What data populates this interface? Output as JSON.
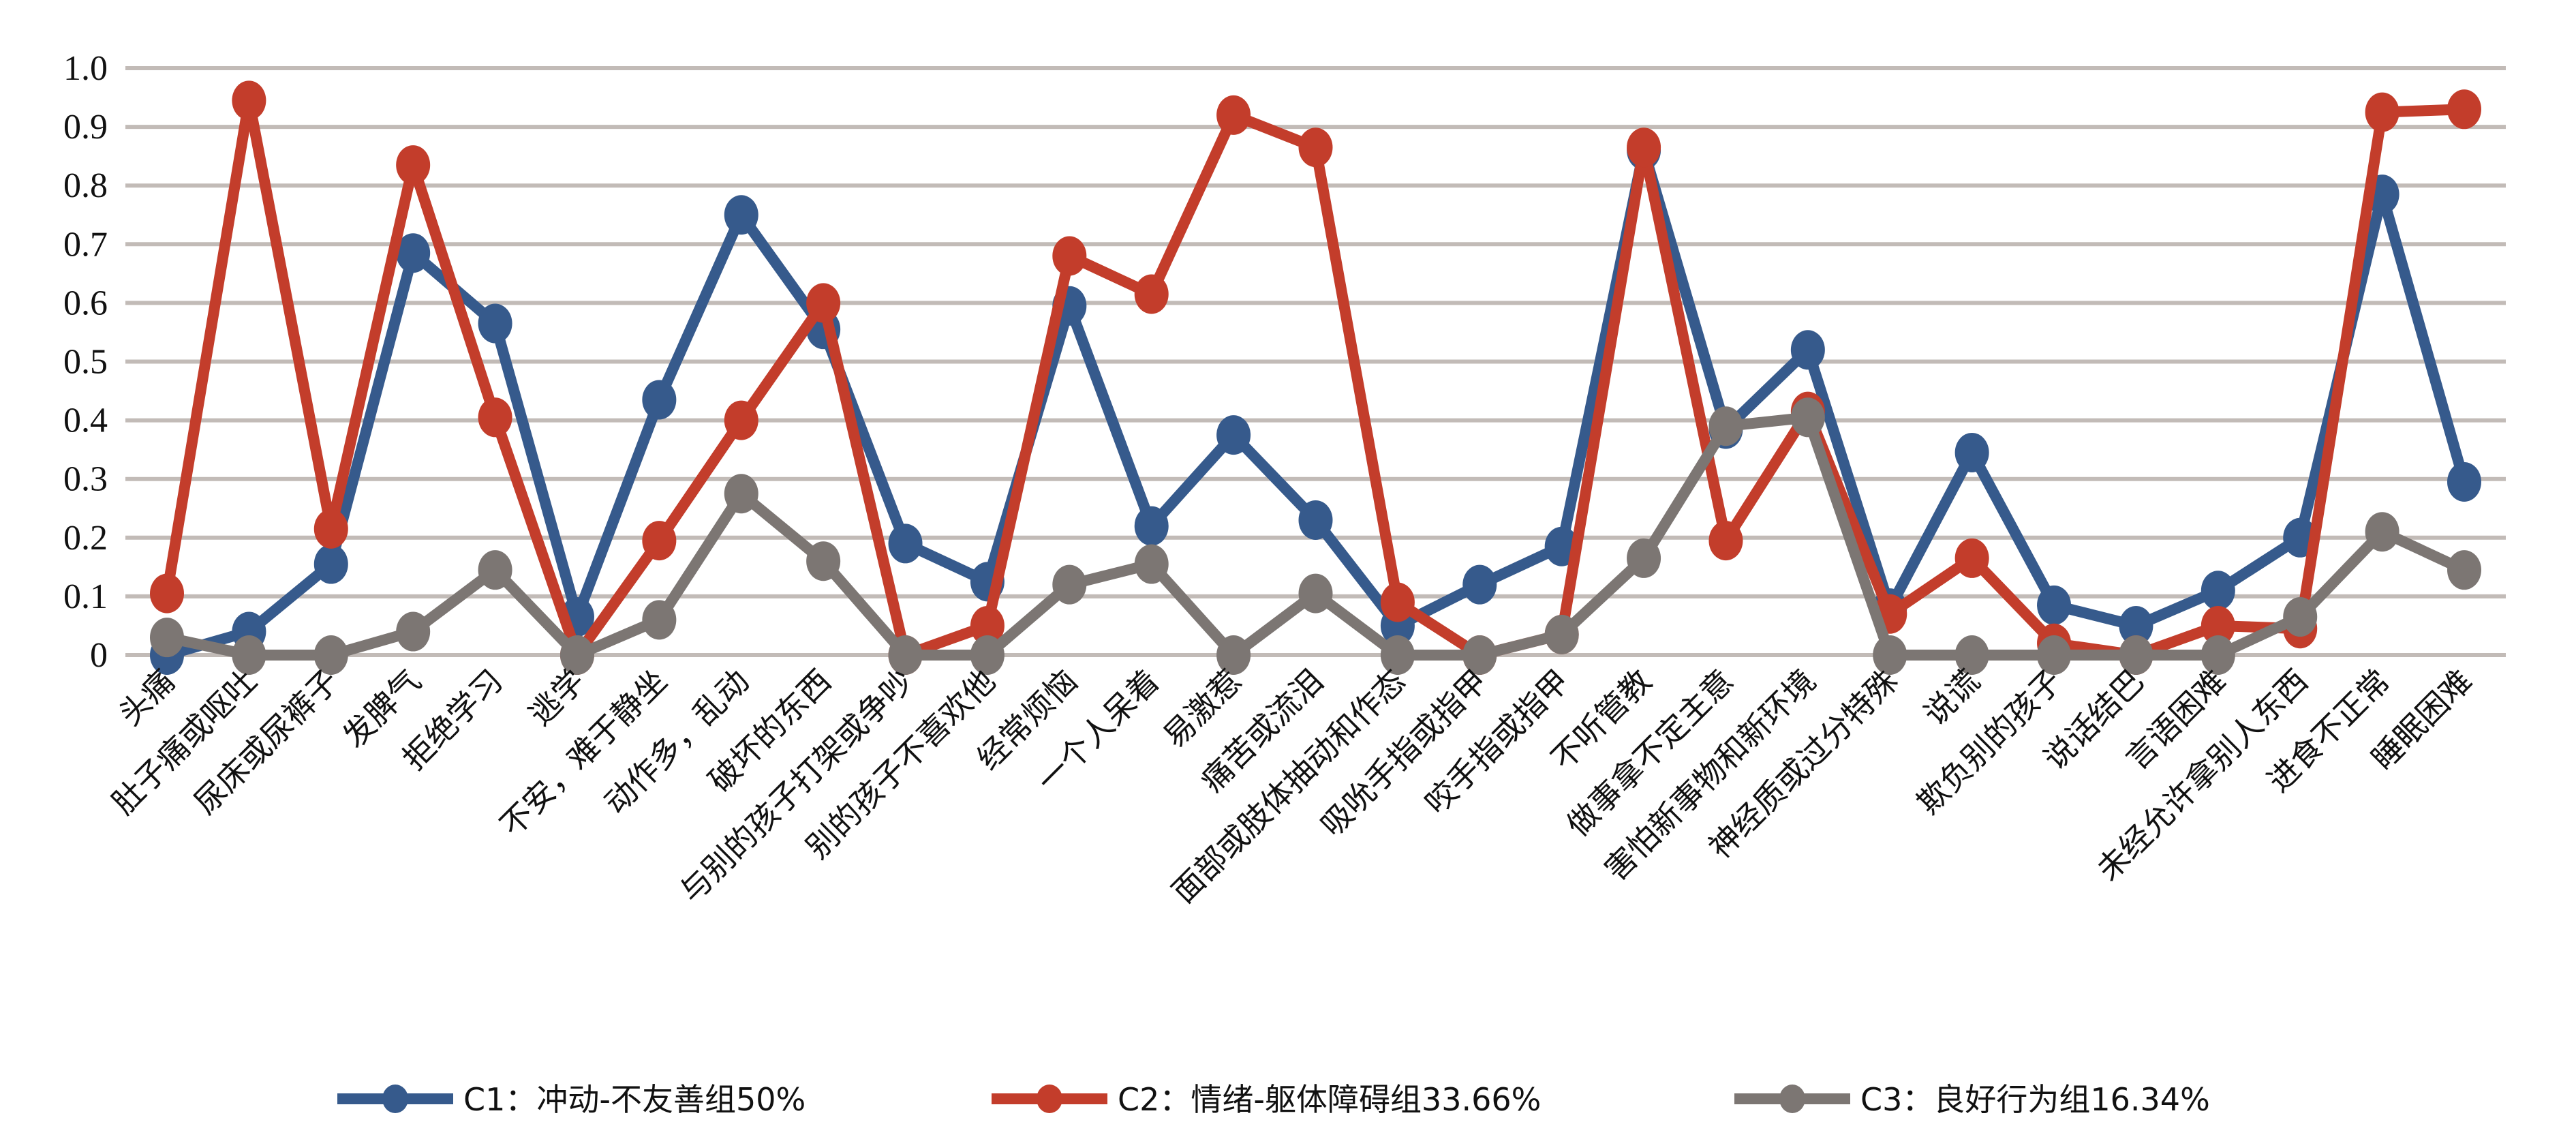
{
  "chart_data": {
    "type": "line",
    "title": "",
    "xlabel": "",
    "ylabel": "",
    "ylim": [
      0,
      1.0
    ],
    "yticks": [
      "0",
      "0.1",
      "0.2",
      "0.3",
      "0.4",
      "0.5",
      "0.6",
      "0.7",
      "0.8",
      "0.9",
      "1.0"
    ],
    "grid": true,
    "legend_position": "bottom",
    "categories": [
      "头痛",
      "肚子痛或呕吐",
      "尿床或尿裤子",
      "发脾气",
      "拒绝学习",
      "逃学",
      "不安，难于静坐",
      "动作多，乱动",
      "破坏的东西",
      "与别的孩子打架或争吵",
      "别的孩子不喜欢他",
      "经常烦恼",
      "一个人呆着",
      "易激惹",
      "痛苦或流泪",
      "面部或肢体抽动和作态",
      "吸吮手指或指甲",
      "咬手指或指甲",
      "不听管教",
      "做事拿不定主意",
      "害怕新事物和新环境",
      "神经质或过分特殊",
      "说谎",
      "欺负别的孩子",
      "说话结巴",
      "言语困难",
      "未经允许拿别人东西",
      "进食不正常",
      "睡眠困难"
    ],
    "series": [
      {
        "name": "C1：冲动-不友善组50%",
        "color": "#365a8c",
        "values": [
          0,
          0.04,
          0.155,
          0.685,
          0.565,
          0.065,
          0.435,
          0.75,
          0.555,
          0.19,
          0.125,
          0.595,
          0.22,
          0.375,
          0.23,
          0.05,
          0.12,
          0.185,
          0.86,
          0.385,
          0.52,
          0.08,
          0.345,
          0.085,
          0.05,
          0.11,
          0.2,
          0.785,
          0.295
        ]
      },
      {
        "name": "C2：情绪-躯体障碍组33.66%",
        "color": "#c33d2b",
        "values": [
          0.105,
          0.945,
          0.215,
          0.835,
          0.405,
          0,
          0.195,
          0.4,
          0.6,
          0,
          0.05,
          0.68,
          0.615,
          0.92,
          0.865,
          0.09,
          0,
          0.035,
          0.865,
          0.195,
          0.415,
          0.07,
          0.165,
          0.02,
          0,
          0.05,
          0.045,
          0.925,
          0.93
        ]
      },
      {
        "name": "C3：良好行为组16.34%",
        "color": "#7c7673",
        "values": [
          0.03,
          0,
          0,
          0.04,
          0.145,
          0,
          0.06,
          0.275,
          0.16,
          0,
          0,
          0.12,
          0.155,
          0,
          0.105,
          0,
          0,
          0.035,
          0.165,
          0.39,
          0.405,
          0,
          0,
          0,
          0,
          0,
          0.065,
          0.21,
          0.145
        ]
      }
    ]
  }
}
